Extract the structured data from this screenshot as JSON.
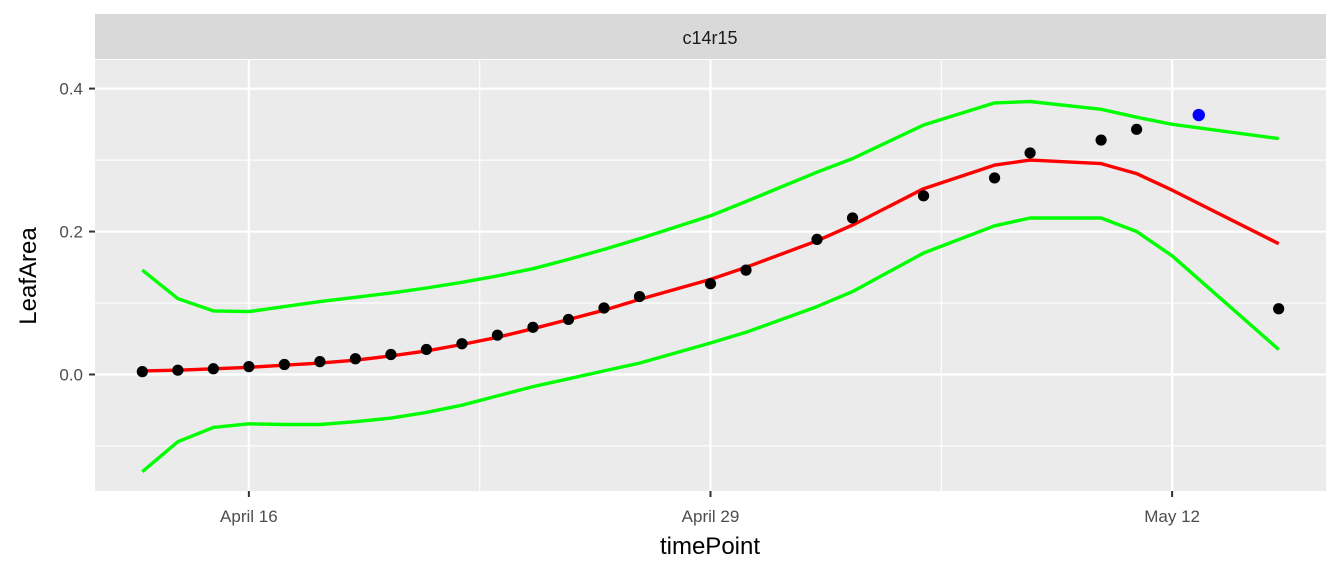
{
  "chart_data": {
    "type": "line",
    "panel_title": "c14r15",
    "xlabel": "timePoint",
    "ylabel": "LeafArea",
    "x_axis": {
      "range": [
        "2024-04-11T16:00",
        "2024-05-16T08:00"
      ],
      "major_ticks": [
        {
          "date": "2024-04-16",
          "label": "April 16"
        },
        {
          "date": "2024-04-29",
          "label": "April 29"
        },
        {
          "date": "2024-05-12",
          "label": "May 12"
        }
      ],
      "minor_gridlines": [
        "2024-04-22T12:00",
        "2024-05-05T12:00"
      ]
    },
    "y_axis": {
      "range": [
        -0.163,
        0.44
      ],
      "major_ticks": [
        {
          "value": 0.0,
          "label": "0.0"
        },
        {
          "value": 0.2,
          "label": "0.2"
        },
        {
          "value": 0.4,
          "label": "0.4"
        }
      ],
      "minor_gridlines": [
        -0.1,
        0.1,
        0.3
      ]
    },
    "grid": true,
    "x": [
      "2024-04-13",
      "2024-04-14",
      "2024-04-15",
      "2024-04-16",
      "2024-04-17",
      "2024-04-18",
      "2024-04-19",
      "2024-04-20",
      "2024-04-21",
      "2024-04-22",
      "2024-04-23",
      "2024-04-24",
      "2024-04-25",
      "2024-04-26",
      "2024-04-27",
      "2024-04-29",
      "2024-04-30",
      "2024-05-02",
      "2024-05-03",
      "2024-05-05",
      "2024-05-07",
      "2024-05-08",
      "2024-05-10",
      "2024-05-11",
      "2024-05-12",
      "2024-05-15"
    ],
    "series": [
      {
        "role": "upper-band",
        "color": "#00ff00",
        "values": [
          0.146,
          0.106,
          0.089,
          0.088,
          0.095,
          0.102,
          0.108,
          0.114,
          0.121,
          0.129,
          0.138,
          0.148,
          0.161,
          0.175,
          0.19,
          0.222,
          0.242,
          0.283,
          0.302,
          0.349,
          0.38,
          0.382,
          0.371,
          0.36,
          0.35,
          0.33
        ]
      },
      {
        "role": "fit",
        "color": "#ff0000",
        "values": [
          0.005,
          0.006,
          0.008,
          0.01,
          0.013,
          0.016,
          0.02,
          0.026,
          0.033,
          0.042,
          0.052,
          0.064,
          0.077,
          0.09,
          0.105,
          0.133,
          0.15,
          0.187,
          0.209,
          0.26,
          0.293,
          0.3,
          0.295,
          0.281,
          0.258,
          0.183
        ]
      },
      {
        "role": "lower-band",
        "color": "#00ff00",
        "values": [
          -0.136,
          -0.094,
          -0.074,
          -0.069,
          -0.07,
          -0.07,
          -0.066,
          -0.061,
          -0.053,
          -0.043,
          -0.03,
          -0.017,
          -0.006,
          0.005,
          0.016,
          0.044,
          0.059,
          0.095,
          0.116,
          0.17,
          0.208,
          0.219,
          0.219,
          0.2,
          0.166,
          0.035
        ]
      }
    ],
    "points": {
      "color": "#000000",
      "values": [
        {
          "x": "2024-04-13",
          "y": 0.004
        },
        {
          "x": "2024-04-14",
          "y": 0.006
        },
        {
          "x": "2024-04-15",
          "y": 0.008
        },
        {
          "x": "2024-04-16",
          "y": 0.011
        },
        {
          "x": "2024-04-17",
          "y": 0.014
        },
        {
          "x": "2024-04-18",
          "y": 0.018
        },
        {
          "x": "2024-04-19",
          "y": 0.022
        },
        {
          "x": "2024-04-20",
          "y": 0.028
        },
        {
          "x": "2024-04-21",
          "y": 0.035
        },
        {
          "x": "2024-04-22",
          "y": 0.043
        },
        {
          "x": "2024-04-23",
          "y": 0.055
        },
        {
          "x": "2024-04-24",
          "y": 0.066
        },
        {
          "x": "2024-04-25",
          "y": 0.077
        },
        {
          "x": "2024-04-26",
          "y": 0.093
        },
        {
          "x": "2024-04-27",
          "y": 0.109
        },
        {
          "x": "2024-04-29",
          "y": 0.127
        },
        {
          "x": "2024-04-30",
          "y": 0.146
        },
        {
          "x": "2024-05-02",
          "y": 0.189
        },
        {
          "x": "2024-05-03",
          "y": 0.219
        },
        {
          "x": "2024-05-05",
          "y": 0.25
        },
        {
          "x": "2024-05-07",
          "y": 0.275
        },
        {
          "x": "2024-05-08",
          "y": 0.31
        },
        {
          "x": "2024-05-10",
          "y": 0.328
        },
        {
          "x": "2024-05-11",
          "y": 0.343
        },
        {
          "x": "2024-05-15",
          "y": 0.092
        }
      ]
    },
    "highlight_point": {
      "x": "2024-05-12T18:00",
      "y": 0.363,
      "color": "#0000ff"
    },
    "colors": {
      "panel_bg": "#ebebeb",
      "strip_bg": "#d9d9d9",
      "grid": "#ffffff"
    }
  }
}
